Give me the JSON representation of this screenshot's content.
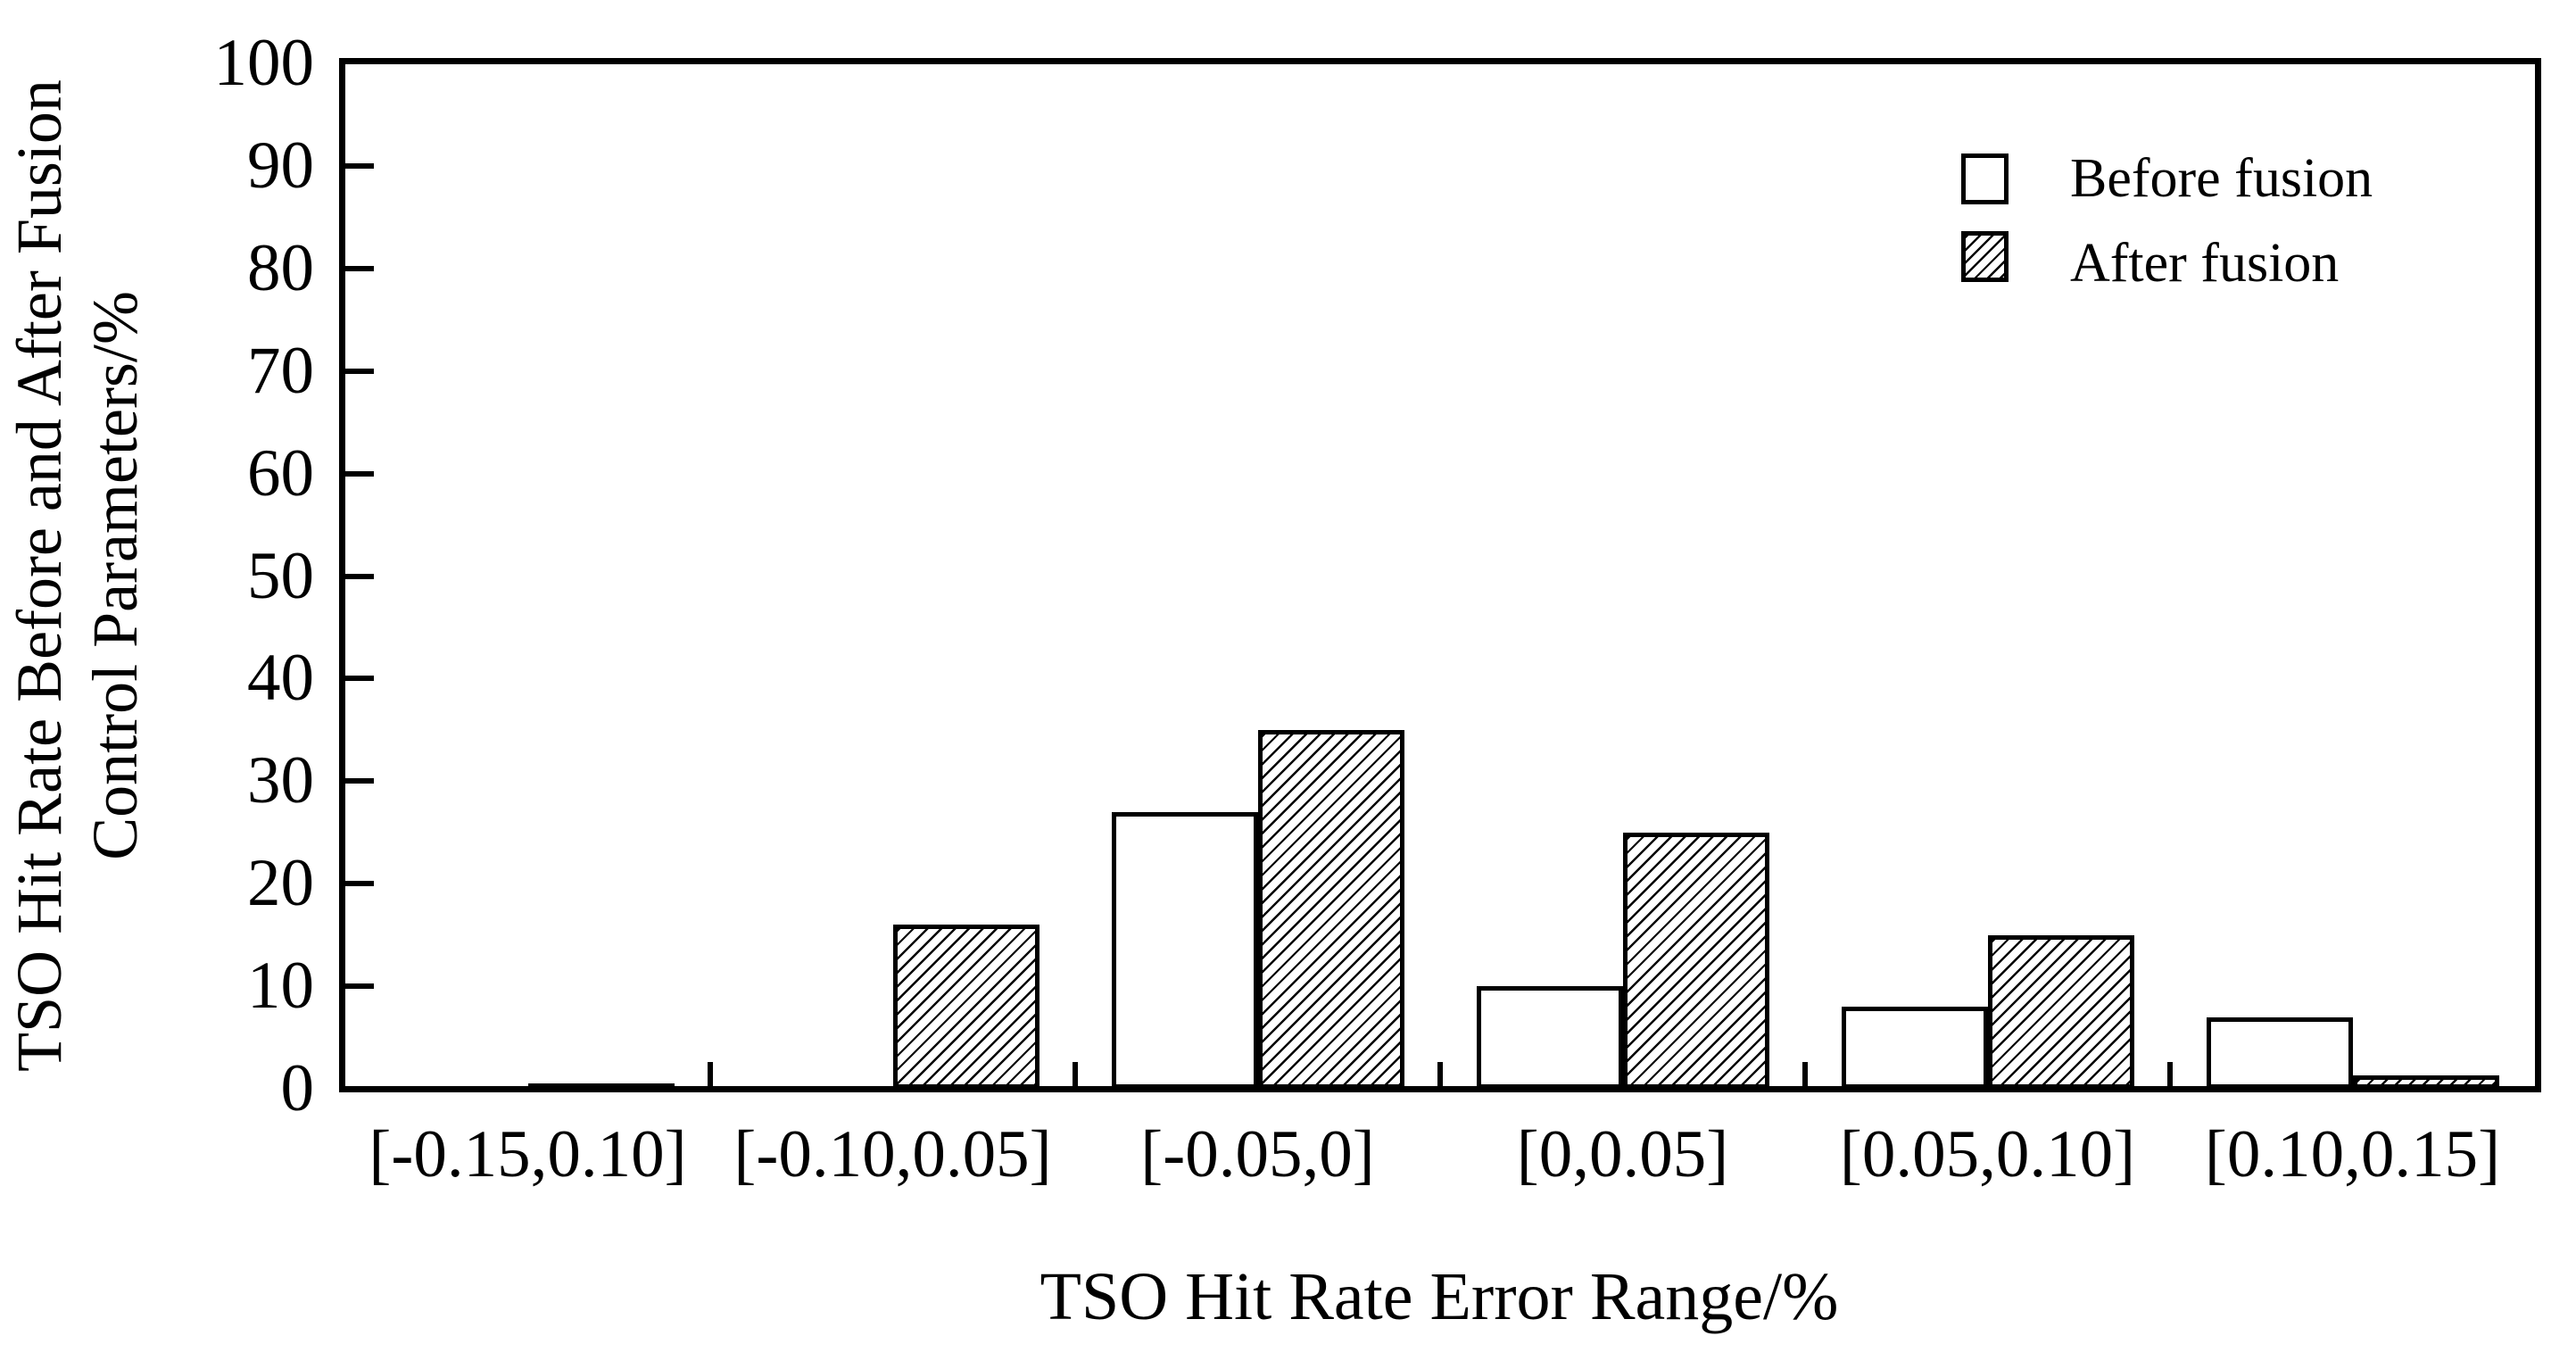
{
  "figure": {
    "background_color": "#ffffff",
    "ink_color": "#000000"
  },
  "chart_data": {
    "type": "bar",
    "title": "",
    "categories": [
      "[-0.15,0.10]",
      "[-0.10,0.05]",
      "[-0.05,0]",
      "[0,0.05]",
      "[0.05,0.10]",
      "[0.10,0.15]"
    ],
    "series": [
      {
        "name": "Before fusion",
        "style": "white",
        "values": [
          0,
          0,
          27,
          10,
          8,
          7
        ]
      },
      {
        "name": "After fusion",
        "style": "hatched",
        "values": [
          0.5,
          16,
          35,
          25,
          15,
          1.3
        ]
      }
    ],
    "xlabel": "TSO Hit Rate Error Range/%",
    "ylabel_lines": [
      "TSO Hit Rate Before and After Fusion",
      "Control Parameters/%"
    ],
    "ylim": [
      0,
      100
    ],
    "yticks": [
      0,
      10,
      20,
      30,
      40,
      50,
      60,
      70,
      80,
      90,
      100
    ],
    "grid": false,
    "legend_position": "top-right-inside",
    "bar_outline": "#000000",
    "hatch_pattern": "diagonal-forward-slash"
  }
}
